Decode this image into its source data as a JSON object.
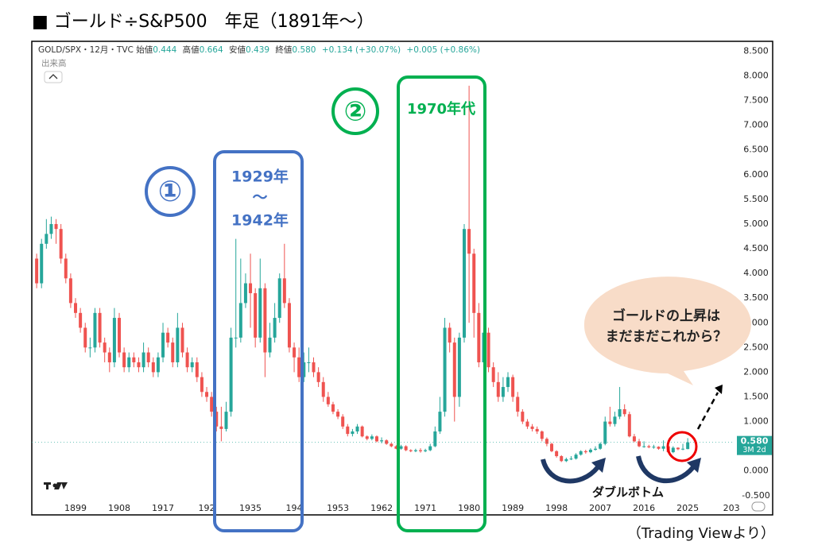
{
  "title": "■ ゴールド÷S&P500　年足（1891年～）",
  "source": "（Trading Viewより）",
  "header": {
    "symbol": "GOLD/SPX・12月・TVC",
    "open_label": "始値",
    "open": "0.444",
    "high_label": "高値",
    "high": "0.664",
    "low_label": "安値",
    "low": "0.439",
    "close_label": "終値",
    "close": "0.580",
    "change": "+0.134 (+30.07%)",
    "change2": "+0.005 (+0.86%)",
    "volume": "出来高"
  },
  "annotations": {
    "box1_num": "①",
    "box1_from": "1929年",
    "box1_sep": "～",
    "box1_to": "1942年",
    "box2_num": "②",
    "box2_label": "1970年代",
    "bubble_line1": "ゴールドの上昇は",
    "bubble_line2": "まだまだこれから？",
    "double_bottom": "ダブルボトム"
  },
  "chart_data": {
    "type": "candlestick",
    "up_color": "#26a69a",
    "down_color": "#ef5350",
    "price_label": "0.580",
    "price_sub": "3M 2d",
    "xlim": [
      1890,
      2034.3
    ],
    "xticks": [
      1899,
      1908,
      1917,
      {
        "value": 1926,
        "label": "192"
      },
      1935,
      {
        "value": 1944,
        "label": "194"
      },
      1953,
      1962,
      1971,
      1980,
      1989,
      1998,
      2007,
      2016,
      2025,
      {
        "value": 2034,
        "label": "203"
      }
    ],
    "ylim": [
      -0.6,
      8.7
    ],
    "yticks": [
      {
        "value": -0.5,
        "label": "-0.500"
      },
      {
        "value": 0,
        "label": "0.000"
      },
      {
        "value": 0.5,
        "label": "0.500"
      },
      {
        "value": 1,
        "label": "1.000"
      },
      {
        "value": 1.5,
        "label": "1.500"
      },
      {
        "value": 2,
        "label": "2.000"
      },
      {
        "value": 2.5,
        "label": "2.500"
      },
      {
        "value": 3,
        "label": "3.000"
      },
      {
        "value": 3.5,
        "label": "3.500"
      },
      {
        "value": 4,
        "label": "4.000"
      },
      {
        "value": 4.5,
        "label": "4.500"
      },
      {
        "value": 5,
        "label": "5.000"
      },
      {
        "value": 5.5,
        "label": "5.500"
      },
      {
        "value": 6,
        "label": "6.000"
      },
      {
        "value": 6.5,
        "label": "6.500"
      },
      {
        "value": 7,
        "label": "7.000"
      },
      {
        "value": 7.5,
        "label": "7.500"
      },
      {
        "value": 8,
        "label": "8.000"
      },
      {
        "value": 8.5,
        "label": "8.500"
      }
    ],
    "grid": false,
    "x": [
      1891,
      1892,
      1893,
      1894,
      1895,
      1896,
      1897,
      1898,
      1899,
      1900,
      1901,
      1902,
      1903,
      1904,
      1905,
      1906,
      1907,
      1908,
      1909,
      1910,
      1911,
      1912,
      1913,
      1914,
      1915,
      1916,
      1917,
      1918,
      1919,
      1920,
      1921,
      1922,
      1923,
      1924,
      1925,
      1926,
      1927,
      1928,
      1929,
      1930,
      1931,
      1932,
      1933,
      1934,
      1935,
      1936,
      1937,
      1938,
      1939,
      1940,
      1941,
      1942,
      1943,
      1944,
      1945,
      1946,
      1947,
      1948,
      1949,
      1950,
      1951,
      1952,
      1953,
      1954,
      1955,
      1956,
      1957,
      1958,
      1959,
      1960,
      1961,
      1962,
      1963,
      1964,
      1965,
      1966,
      1967,
      1968,
      1969,
      1970,
      1971,
      1972,
      1973,
      1974,
      1975,
      1976,
      1977,
      1978,
      1979,
      1980,
      1981,
      1982,
      1983,
      1984,
      1985,
      1986,
      1987,
      1988,
      1989,
      1990,
      1991,
      1992,
      1993,
      1994,
      1995,
      1996,
      1997,
      1998,
      1999,
      2000,
      2001,
      2002,
      2003,
      2004,
      2005,
      2006,
      2007,
      2008,
      2009,
      2010,
      2011,
      2012,
      2013,
      2014,
      2015,
      2016,
      2017,
      2018,
      2019,
      2020,
      2021,
      2022,
      2023,
      2024,
      2025
    ],
    "open": [
      4.3,
      3.8,
      4.6,
      4.8,
      5.0,
      4.9,
      4.3,
      3.9,
      3.4,
      3.2,
      2.9,
      2.5,
      2.5,
      3.2,
      2.6,
      2.4,
      2.2,
      3.1,
      2.4,
      2.1,
      2.3,
      2.2,
      2.1,
      2.4,
      2.2,
      2.0,
      2.3,
      2.8,
      2.6,
      2.2,
      2.9,
      2.4,
      2.1,
      2.2,
      1.9,
      1.6,
      1.5,
      1.2,
      0.9,
      0.85,
      1.2,
      2.7,
      2.7,
      3.4,
      3.8,
      3.6,
      2.7,
      3.7,
      2.4,
      2.7,
      3.1,
      3.9,
      3.4,
      2.5,
      2.3,
      1.9,
      2.2,
      2.2,
      2.0,
      1.8,
      1.5,
      1.35,
      1.2,
      1.1,
      0.9,
      0.75,
      0.8,
      0.9,
      0.7,
      0.65,
      0.7,
      0.6,
      0.62,
      0.55,
      0.5,
      0.45,
      0.5,
      0.42,
      0.4,
      0.42,
      0.4,
      0.42,
      0.5,
      0.8,
      1.2,
      2.9,
      2.6,
      1.5,
      2.7,
      4.9,
      4.4,
      3.2,
      2.2,
      2.8,
      2.1,
      1.8,
      1.5,
      1.7,
      1.9,
      1.5,
      1.2,
      1.0,
      0.9,
      0.85,
      0.8,
      0.65,
      0.55,
      0.4,
      0.3,
      0.2,
      0.24,
      0.25,
      0.33,
      0.4,
      0.38,
      0.43,
      0.45,
      0.55,
      1.0,
      0.95,
      1.1,
      1.25,
      1.15,
      0.7,
      0.6,
      0.5,
      0.5,
      0.48,
      0.49,
      0.45,
      0.5,
      0.38,
      0.47,
      0.44,
      0.444
    ],
    "high": [
      4.4,
      4.7,
      5.1,
      5.15,
      5.1,
      5.0,
      4.4,
      4.0,
      3.5,
      3.3,
      3.0,
      2.7,
      3.3,
      3.3,
      2.7,
      2.5,
      3.3,
      3.2,
      2.5,
      2.4,
      2.4,
      2.3,
      2.6,
      2.5,
      2.3,
      2.4,
      3.0,
      2.9,
      2.7,
      3.2,
      3.0,
      2.5,
      2.3,
      2.3,
      2.0,
      1.7,
      1.6,
      1.3,
      1.3,
      1.4,
      2.9,
      4.7,
      4.3,
      4.0,
      4.4,
      3.7,
      4.3,
      3.8,
      3.0,
      3.4,
      4.0,
      4.6,
      3.5,
      2.6,
      2.5,
      2.4,
      2.5,
      2.3,
      2.1,
      1.9,
      1.6,
      1.4,
      1.25,
      1.15,
      0.95,
      0.85,
      0.95,
      0.92,
      0.72,
      0.74,
      0.72,
      0.68,
      0.64,
      0.57,
      0.52,
      0.53,
      0.52,
      0.44,
      0.45,
      0.46,
      0.45,
      0.55,
      0.9,
      1.5,
      3.1,
      3.0,
      2.7,
      2.8,
      5.0,
      7.8,
      4.5,
      3.4,
      2.9,
      2.9,
      2.2,
      2.0,
      1.9,
      2.0,
      1.95,
      1.6,
      1.25,
      1.05,
      0.95,
      0.9,
      0.82,
      0.68,
      0.57,
      0.42,
      0.32,
      0.27,
      0.3,
      0.36,
      0.42,
      0.43,
      0.46,
      0.5,
      0.58,
      1.1,
      1.3,
      1.2,
      1.7,
      1.35,
      1.2,
      0.75,
      0.65,
      0.6,
      0.53,
      0.53,
      0.5,
      0.62,
      0.52,
      0.5,
      0.48,
      0.55,
      0.664
    ],
    "low": [
      3.7,
      3.7,
      4.5,
      4.7,
      4.6,
      4.2,
      3.8,
      3.3,
      3.1,
      2.8,
      2.4,
      2.3,
      2.4,
      2.5,
      2.2,
      2.0,
      2.1,
      2.3,
      2.0,
      2.0,
      2.1,
      2.0,
      2.0,
      2.1,
      1.9,
      1.9,
      2.2,
      2.5,
      2.1,
      2.1,
      2.3,
      2.0,
      2.0,
      1.8,
      1.5,
      1.4,
      1.1,
      0.8,
      0.6,
      0.8,
      1.1,
      2.5,
      2.6,
      3.3,
      2.9,
      2.5,
      2.6,
      1.9,
      2.3,
      2.6,
      3.0,
      3.3,
      2.4,
      2.0,
      1.8,
      1.8,
      2.0,
      1.9,
      1.7,
      1.4,
      1.3,
      1.15,
      1.05,
      0.85,
      0.7,
      0.7,
      0.75,
      0.68,
      0.62,
      0.62,
      0.58,
      0.56,
      0.53,
      0.48,
      0.44,
      0.43,
      0.4,
      0.38,
      0.38,
      0.37,
      0.38,
      0.4,
      0.48,
      0.75,
      1.1,
      2.4,
      1.0,
      1.3,
      2.6,
      3.0,
      2.7,
      2.1,
      2.1,
      2.0,
      1.7,
      1.4,
      1.4,
      1.6,
      1.4,
      1.1,
      0.95,
      0.85,
      0.8,
      0.75,
      0.6,
      0.5,
      0.38,
      0.27,
      0.18,
      0.18,
      0.22,
      0.23,
      0.31,
      0.35,
      0.36,
      0.41,
      0.43,
      0.52,
      0.9,
      0.9,
      1.05,
      1.1,
      0.68,
      0.58,
      0.48,
      0.47,
      0.46,
      0.45,
      0.43,
      0.4,
      0.37,
      0.36,
      0.42,
      0.42,
      0.439
    ],
    "close": [
      3.8,
      4.6,
      4.8,
      5.0,
      4.9,
      4.3,
      3.9,
      3.4,
      3.2,
      2.9,
      2.5,
      2.5,
      3.2,
      2.6,
      2.4,
      2.2,
      3.1,
      2.4,
      2.1,
      2.3,
      2.2,
      2.1,
      2.4,
      2.2,
      2.0,
      2.3,
      2.8,
      2.6,
      2.2,
      2.9,
      2.4,
      2.1,
      2.2,
      1.9,
      1.6,
      1.5,
      1.2,
      0.9,
      0.85,
      1.2,
      2.7,
      2.7,
      3.4,
      3.8,
      3.6,
      2.7,
      3.7,
      2.4,
      2.7,
      3.1,
      3.9,
      3.4,
      2.5,
      2.3,
      1.9,
      2.2,
      2.2,
      2.0,
      1.8,
      1.5,
      1.35,
      1.2,
      1.1,
      0.9,
      0.75,
      0.8,
      0.9,
      0.7,
      0.65,
      0.7,
      0.6,
      0.62,
      0.55,
      0.5,
      0.45,
      0.5,
      0.42,
      0.4,
      0.42,
      0.4,
      0.42,
      0.5,
      0.8,
      1.2,
      2.9,
      2.6,
      1.5,
      2.7,
      4.9,
      4.4,
      3.2,
      2.2,
      2.8,
      2.1,
      1.8,
      1.5,
      1.7,
      1.9,
      1.5,
      1.2,
      1.0,
      0.9,
      0.85,
      0.8,
      0.65,
      0.55,
      0.4,
      0.3,
      0.2,
      0.24,
      0.25,
      0.33,
      0.4,
      0.38,
      0.43,
      0.45,
      0.55,
      1.0,
      0.95,
      1.1,
      1.25,
      1.15,
      0.7,
      0.6,
      0.5,
      0.5,
      0.48,
      0.49,
      0.45,
      0.5,
      0.38,
      0.47,
      0.44,
      0.45,
      0.58
    ]
  }
}
